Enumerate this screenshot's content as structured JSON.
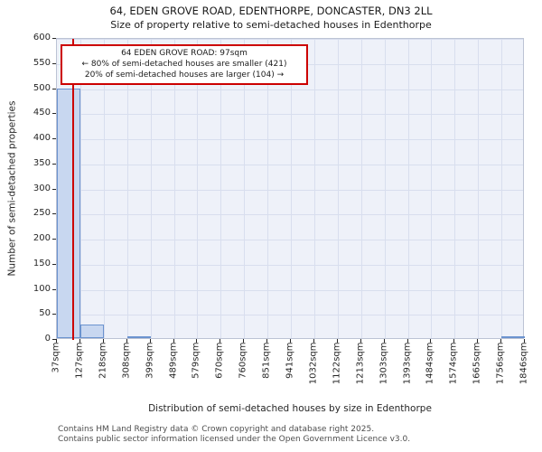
{
  "chart_data": {
    "type": "bar",
    "title": "64, EDEN GROVE ROAD, EDENTHORPE, DONCASTER, DN3 2LL",
    "subtitle": "Size of property relative to semi-detached houses in Edenthorpe",
    "xlabel": "Distribution of semi-detached houses by size in Edenthorpe",
    "ylabel": "Number of semi-detached properties",
    "bin_edge_labels": [
      "37sqm",
      "127sqm",
      "218sqm",
      "308sqm",
      "399sqm",
      "489sqm",
      "579sqm",
      "670sqm",
      "760sqm",
      "851sqm",
      "941sqm",
      "1032sqm",
      "1122sqm",
      "1213sqm",
      "1303sqm",
      "1393sqm",
      "1484sqm",
      "1574sqm",
      "1665sqm",
      "1756sqm",
      "1846sqm"
    ],
    "values": [
      498,
      27,
      0,
      2,
      0,
      0,
      0,
      0,
      0,
      0,
      0,
      0,
      0,
      0,
      0,
      0,
      0,
      0,
      0,
      2
    ],
    "ylim": [
      0,
      600
    ],
    "yticks": [
      0,
      50,
      100,
      150,
      200,
      250,
      300,
      350,
      400,
      450,
      500,
      550,
      600
    ],
    "x_min": 37,
    "x_max": 1846,
    "grid": true,
    "marker_line": {
      "value_sqm": 97,
      "color": "#cc0000"
    },
    "annotation": {
      "line1": "64 EDEN GROVE ROAD: 97sqm",
      "line2": "← 80% of semi-detached houses are smaller (421)",
      "line3": "20% of semi-detached houses are larger (104) →"
    },
    "colors": {
      "bar_fill": "#c8d7f0",
      "bar_edge": "#6b93cf",
      "plot_bg": "#eef1f9",
      "grid": "#d8deee",
      "marker": "#cc0000"
    }
  },
  "footer": {
    "line1": "Contains HM Land Registry data © Crown copyright and database right 2025.",
    "line2": "Contains public sector information licensed under the Open Government Licence v3.0."
  }
}
